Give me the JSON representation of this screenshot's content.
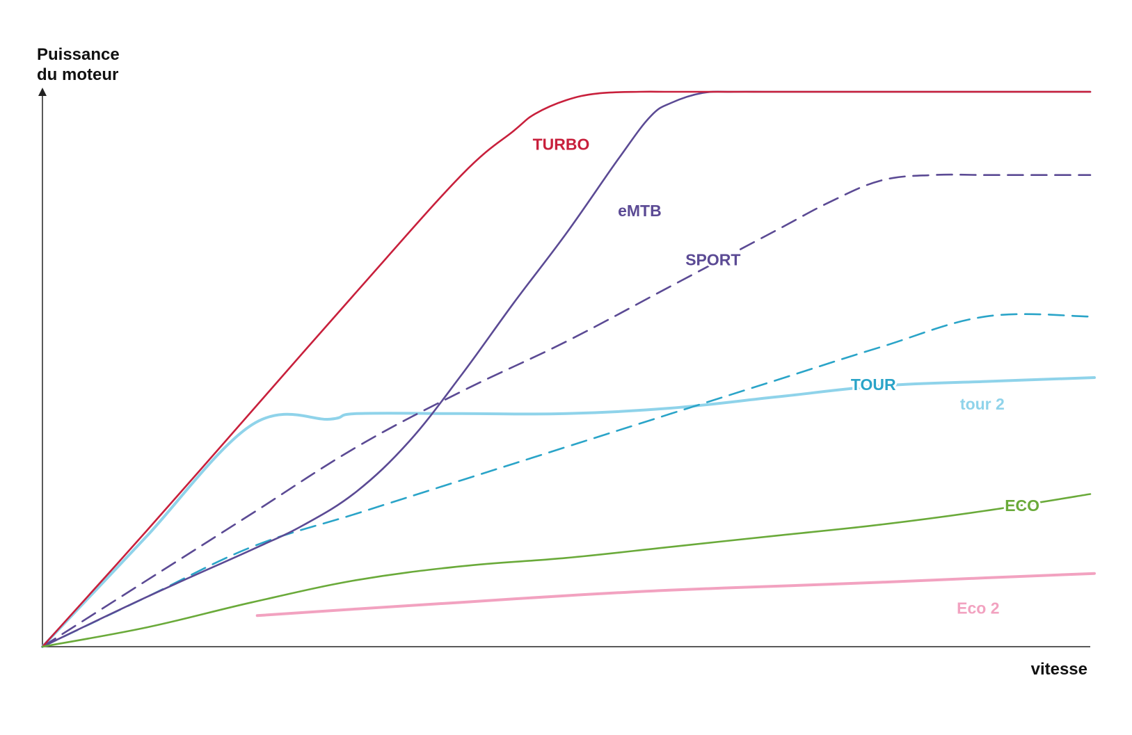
{
  "chart_data": {
    "type": "line",
    "title": "",
    "ylabel_lines": [
      "Puissance",
      "du moteur"
    ],
    "xlabel": "vitesse",
    "xlim": [
      0,
      100
    ],
    "ylim": [
      0,
      100
    ],
    "grid": false,
    "legend": "none",
    "series": [
      {
        "name": "TURBO",
        "color": "#c8203c",
        "dash": false,
        "label_at": [
          49.5,
          90.3
        ],
        "x": [
          0,
          10,
          20,
          30,
          40,
          45,
          47,
          50,
          53,
          57,
          60,
          66,
          70,
          80,
          90,
          100
        ],
        "y": [
          0,
          21,
          42.5,
          64,
          85,
          93,
          96,
          98.5,
          99.7,
          100,
          100,
          100,
          100,
          100,
          100,
          100
        ]
      },
      {
        "name": "eMTB",
        "color": "#5b4a94",
        "dash": false,
        "label_at": [
          57,
          78.3
        ],
        "x": [
          0,
          10,
          20,
          25,
          30,
          35,
          40,
          45,
          50,
          55,
          58,
          60,
          63,
          66,
          70,
          80,
          90,
          100
        ],
        "y": [
          0,
          9,
          17.5,
          22,
          28,
          37,
          49,
          62,
          74.5,
          88,
          95.5,
          98,
          99.8,
          100,
          100,
          100,
          100,
          100
        ]
      },
      {
        "name": "SPORT",
        "color": "#5b4a94",
        "dash": true,
        "label_at": [
          64,
          69.5
        ],
        "x": [
          0,
          10,
          20,
          30,
          40,
          50,
          60,
          70,
          75,
          80,
          85,
          90,
          95,
          100
        ],
        "y": [
          0,
          12,
          24,
          36,
          46,
          55,
          65,
          75,
          80,
          84,
          85,
          85,
          85,
          85
        ]
      },
      {
        "name": "TOUR",
        "color": "#2aa4c8",
        "dash": true,
        "label_at": [
          79.3,
          47
        ],
        "x": [
          0,
          10,
          20,
          30,
          40,
          50,
          60,
          70,
          80,
          90,
          100
        ],
        "y": [
          0,
          9,
          18,
          24,
          30,
          36,
          42,
          48,
          54,
          59.5,
          59.5
        ]
      },
      {
        "name": "tour 2",
        "color": "#8fd3ea",
        "dash": false,
        "label_at": [
          89.7,
          43.5
        ],
        "x": [
          0,
          5,
          10,
          20,
          27.5,
          30,
          40,
          50,
          60,
          70,
          80,
          90,
          100.4
        ],
        "y": [
          0,
          10,
          20,
          40,
          41,
          42,
          42,
          42,
          43,
          45,
          47,
          47.8,
          48.5
        ]
      },
      {
        "name": "ECO",
        "color": "#6aaa3a",
        "dash": false,
        "label_at": [
          93.5,
          25.2
        ],
        "x": [
          0,
          10,
          20,
          30,
          40,
          50,
          60,
          70,
          80,
          90,
          100
        ],
        "y": [
          0,
          3.5,
          8,
          12,
          14.5,
          16,
          18,
          20,
          22,
          24.5,
          27.5
        ]
      },
      {
        "name": "Eco 2",
        "color": "#f2a2c0",
        "dash": false,
        "label_at": [
          89.3,
          6.7
        ],
        "x": [
          20.5,
          30,
          40,
          50,
          60,
          70,
          80,
          90,
          100.4
        ],
        "y": [
          5.6,
          6.8,
          8,
          9.2,
          10.2,
          10.9,
          11.6,
          12.4,
          13.2
        ]
      }
    ]
  }
}
